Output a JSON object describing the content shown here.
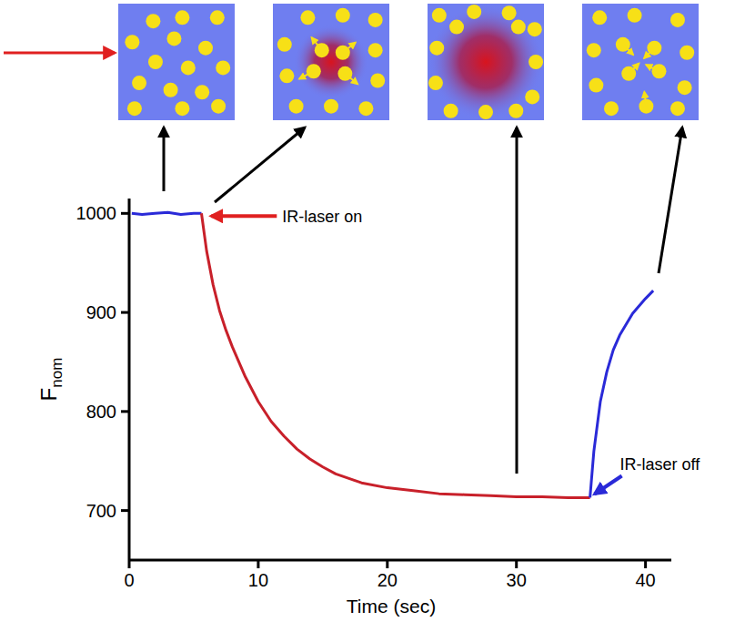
{
  "chart_data": {
    "type": "line",
    "x_label": "Time (sec)",
    "y_label": "F",
    "y_label_subscript": "nom",
    "xlim": [
      0,
      42
    ],
    "ylim": [
      650,
      1015
    ],
    "xticks": [
      0,
      10,
      20,
      30,
      40
    ],
    "yticks": [
      700,
      800,
      900,
      1000
    ],
    "series": [
      {
        "color": "#2a2ad8",
        "x": [
          0.2,
          1,
          2,
          3,
          4,
          5,
          5.6
        ],
        "values": [
          1000,
          999,
          1000,
          1001,
          999,
          1000,
          1000
        ]
      },
      {
        "color": "#c8202a",
        "x": [
          5.6,
          6,
          6.5,
          7,
          7.5,
          8,
          9,
          10,
          11,
          12,
          13,
          14,
          15,
          16,
          18,
          20,
          22,
          24,
          26,
          28,
          30,
          32,
          34,
          35.7
        ],
        "values": [
          1000,
          962,
          928,
          902,
          882,
          865,
          835,
          810,
          790,
          775,
          762,
          752,
          744,
          737,
          728,
          723,
          720,
          717,
          716,
          715,
          714,
          714,
          713,
          713
        ]
      },
      {
        "color": "#2a2ad8",
        "x": [
          35.7,
          36,
          36.5,
          37,
          37.5,
          38,
          39,
          40,
          40.6
        ],
        "values": [
          713,
          760,
          810,
          840,
          862,
          877,
          899,
          914,
          922
        ]
      }
    ],
    "annotations": [
      {
        "text": "IR-laser on",
        "x": 5.8,
        "y": 1000,
        "color": "#e02020"
      },
      {
        "text": "IR-laser off",
        "x": 35.7,
        "y": 713,
        "color": "#2a2ad8"
      }
    ]
  }
}
